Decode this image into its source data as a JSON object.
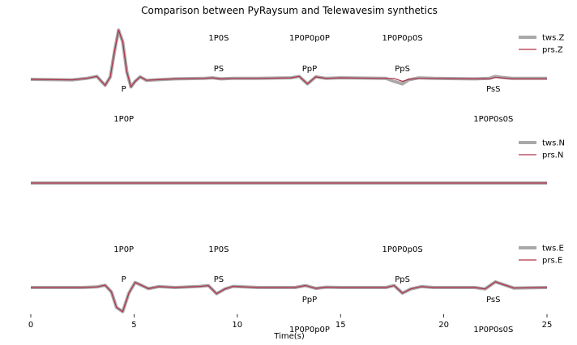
{
  "chart_data": {
    "type": "line",
    "title": "Comparison between PyRaysum and Telewavesim synthetics",
    "xlabel": "Time(s)",
    "xlim": [
      0,
      25
    ],
    "xticks": [
      0,
      5,
      10,
      15,
      20,
      25
    ],
    "colors": {
      "tws": "#a9a9a9",
      "prs": "#b0304a"
    },
    "panels": [
      {
        "legend": [
          "tws.Z",
          "prs.Z"
        ],
        "series": [
          {
            "name": "tws.Z",
            "x": [
              0,
              2,
              2.7,
              3.2,
              3.6,
              3.85,
              4.05,
              4.25,
              4.45,
              4.65,
              4.85,
              5.05,
              5.3,
              5.6,
              6.0,
              7,
              8.4,
              8.8,
              9.2,
              9.8,
              11,
              12.6,
              13.0,
              13.4,
              13.8,
              14.3,
              15,
              17.2,
              17.6,
              18.0,
              18.3,
              18.8,
              19.5,
              21.5,
              22.2,
              22.5,
              22.8,
              23.3,
              25
            ],
            "y": [
              0,
              -0.01,
              0.02,
              0.06,
              -0.12,
              0.05,
              0.55,
              0.98,
              0.75,
              0.15,
              -0.15,
              -0.04,
              0.05,
              -0.02,
              -0.01,
              0.01,
              0.02,
              0.03,
              0.01,
              0.02,
              0.02,
              0.03,
              0.06,
              -0.09,
              0.05,
              0.02,
              0.03,
              0.02,
              -0.04,
              -0.09,
              -0.01,
              0.03,
              0.02,
              0.01,
              0.02,
              0.06,
              0.04,
              0.02,
              0.02
            ]
          },
          {
            "name": "prs.Z",
            "x": [
              0,
              2,
              2.7,
              3.2,
              3.6,
              3.85,
              4.05,
              4.25,
              4.45,
              4.65,
              4.85,
              5.05,
              5.3,
              5.6,
              6.0,
              7,
              8.4,
              8.8,
              9.2,
              9.8,
              11,
              12.6,
              13.0,
              13.4,
              13.8,
              14.3,
              15,
              17.2,
              17.6,
              18.0,
              18.3,
              18.8,
              19.5,
              21.5,
              22.2,
              22.5,
              22.8,
              23.3,
              25
            ],
            "y": [
              0,
              -0.01,
              0.02,
              0.06,
              -0.12,
              0.05,
              0.55,
              0.98,
              0.75,
              0.15,
              -0.15,
              -0.04,
              0.05,
              -0.02,
              -0.01,
              0.01,
              0.02,
              0.03,
              0.01,
              0.02,
              0.02,
              0.03,
              0.06,
              -0.09,
              0.05,
              0.02,
              0.03,
              0.02,
              0.02,
              -0.04,
              0.0,
              0.02,
              0.02,
              0.01,
              0.01,
              0.04,
              0.03,
              0.01,
              0.01
            ]
          }
        ],
        "annotations": [
          {
            "text": "1P0S",
            "x": 9.1,
            "row": "top"
          },
          {
            "text": "1P0P0p0P",
            "x": 13.5,
            "row": "top"
          },
          {
            "text": "1P0P0p0S",
            "x": 18.0,
            "row": "top"
          },
          {
            "text": "PS",
            "x": 9.1,
            "row": "upper"
          },
          {
            "text": "PpP",
            "x": 13.5,
            "row": "upper"
          },
          {
            "text": "PpS",
            "x": 18.0,
            "row": "upper"
          },
          {
            "text": "P",
            "x": 4.5,
            "row": "lower"
          },
          {
            "text": "PsS",
            "x": 22.4,
            "row": "lower"
          },
          {
            "text": "1P0P",
            "x": 4.5,
            "row": "below"
          },
          {
            "text": "1P0P0s0S",
            "x": 22.4,
            "row": "below"
          }
        ]
      },
      {
        "legend": [
          "tws.N",
          "prs.N"
        ],
        "series": [
          {
            "name": "tws.N",
            "x": [
              0,
              25
            ],
            "y": [
              0,
              0
            ]
          },
          {
            "name": "prs.N",
            "x": [
              0,
              25
            ],
            "y": [
              0,
              0
            ]
          }
        ],
        "annotations": []
      },
      {
        "legend": [
          "tws.E",
          "prs.E"
        ],
        "series": [
          {
            "name": "tws.E",
            "x": [
              0,
              2.5,
              3.2,
              3.6,
              3.9,
              4.15,
              4.45,
              4.75,
              5.05,
              5.35,
              5.7,
              6.2,
              7,
              8.2,
              8.6,
              9.0,
              9.4,
              9.8,
              11,
              12.8,
              13.3,
              13.8,
              14.3,
              15,
              17.2,
              17.6,
              18.0,
              18.4,
              18.9,
              19.5,
              21.5,
              22.0,
              22.5,
              22.9,
              23.4,
              25
            ],
            "y": [
              0,
              0.0,
              0.02,
              0.08,
              -0.15,
              -0.7,
              -0.85,
              -0.2,
              0.18,
              0.08,
              -0.04,
              0.03,
              0.0,
              0.04,
              0.07,
              -0.22,
              -0.05,
              0.04,
              0.0,
              0.0,
              0.07,
              -0.03,
              0.01,
              0.0,
              0.0,
              0.07,
              -0.2,
              -0.05,
              0.03,
              0.0,
              0.0,
              -0.05,
              0.2,
              0.1,
              -0.02,
              0.0
            ]
          },
          {
            "name": "prs.E",
            "x": [
              0,
              2.5,
              3.2,
              3.6,
              3.9,
              4.15,
              4.45,
              4.75,
              5.05,
              5.35,
              5.7,
              6.2,
              7,
              8.2,
              8.6,
              9.0,
              9.4,
              9.8,
              11,
              12.8,
              13.3,
              13.8,
              14.3,
              15,
              17.2,
              17.6,
              18.0,
              18.4,
              18.9,
              19.5,
              21.5,
              22.0,
              22.5,
              22.9,
              23.4,
              25
            ],
            "y": [
              0,
              0.0,
              0.02,
              0.08,
              -0.15,
              -0.7,
              -0.85,
              -0.2,
              0.18,
              0.08,
              -0.04,
              0.03,
              0.0,
              0.04,
              0.07,
              -0.22,
              -0.05,
              0.04,
              0.0,
              0.0,
              0.07,
              -0.03,
              0.01,
              0.0,
              0.0,
              0.07,
              -0.2,
              -0.05,
              0.03,
              0.0,
              0.0,
              -0.05,
              0.2,
              0.1,
              -0.02,
              0.0
            ]
          }
        ],
        "annotations": [
          {
            "text": "1P0P",
            "x": 4.5,
            "row": "top"
          },
          {
            "text": "1P0S",
            "x": 9.1,
            "row": "top"
          },
          {
            "text": "1P0P0p0S",
            "x": 18.0,
            "row": "top"
          },
          {
            "text": "P",
            "x": 4.5,
            "row": "upper"
          },
          {
            "text": "PS",
            "x": 9.1,
            "row": "upper"
          },
          {
            "text": "PpS",
            "x": 18.0,
            "row": "upper"
          },
          {
            "text": "PpP",
            "x": 13.5,
            "row": "lower"
          },
          {
            "text": "PsS",
            "x": 22.4,
            "row": "lower"
          },
          {
            "text": "1P0P0p0P",
            "x": 13.5,
            "row": "below"
          },
          {
            "text": "1P0P0s0S",
            "x": 22.4,
            "row": "below"
          }
        ]
      }
    ]
  }
}
